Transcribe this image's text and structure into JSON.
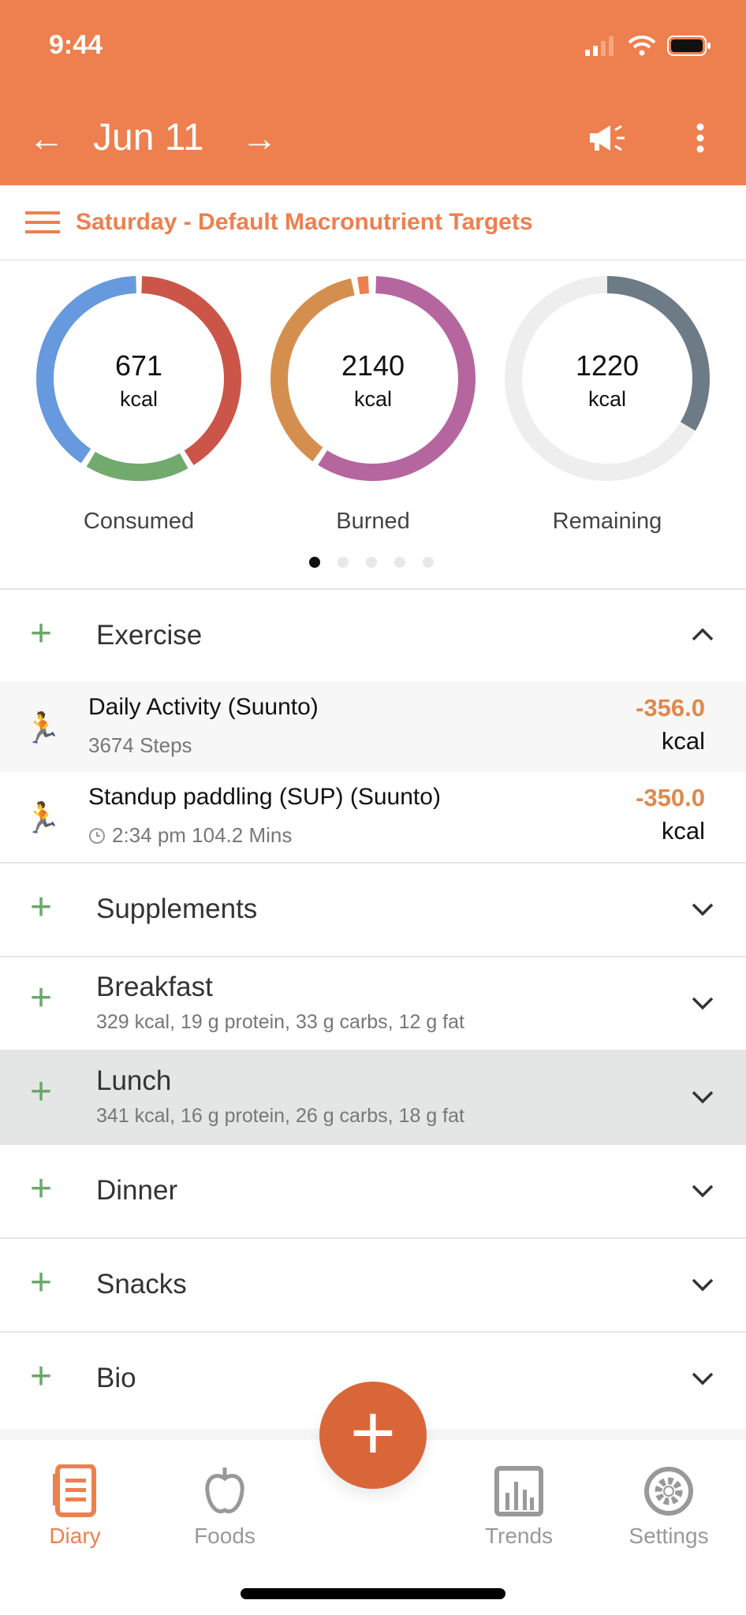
{
  "status": {
    "time": "9:44"
  },
  "header": {
    "date": "Jun 11",
    "back_icon": "arrow-left-icon",
    "forward_icon": "arrow-right-icon"
  },
  "subheader": {
    "title": "Saturday - Default Macronutrient Targets"
  },
  "rings": [
    {
      "value": "671",
      "unit": "kcal",
      "label": "Consumed",
      "segments": [
        {
          "from": 0.005,
          "to": 0.41,
          "color": "#cc5549"
        },
        {
          "from": 0.42,
          "to": 0.585,
          "color": "#72aa6e"
        },
        {
          "from": 0.595,
          "to": 0.995,
          "color": "#6699dd"
        }
      ]
    },
    {
      "value": "2140",
      "unit": "kcal",
      "label": "Burned",
      "segments": [
        {
          "from": 0.005,
          "to": 0.59,
          "color": "#b5669f"
        },
        {
          "from": 0.6,
          "to": 0.965,
          "color": "#d48f4f"
        },
        {
          "from": 0.975,
          "to": 0.992,
          "color": "#ee7f4e"
        }
      ]
    },
    {
      "value": "1220",
      "unit": "kcal",
      "label": "Remaining",
      "segments": [
        {
          "from": 0,
          "to": 1,
          "color": "#eeeeee"
        },
        {
          "from": 0,
          "to": 0.335,
          "color": "#6d7b87"
        }
      ]
    }
  ],
  "pager": {
    "count": 5,
    "active": 0
  },
  "exercise": {
    "title": "Exercise",
    "items": [
      {
        "name": "Daily Activity (Suunto)",
        "detail": "3674 Steps",
        "kcal": "-356.0",
        "unit": "kcal"
      },
      {
        "name": "Standup paddling (SUP) (Suunto)",
        "detail": "2:34 pm 104.2 Mins",
        "kcal": "-350.0",
        "unit": "kcal"
      }
    ]
  },
  "sections": [
    {
      "name": "Supplements",
      "macros": ""
    },
    {
      "name": "Breakfast",
      "macros": "329 kcal, 19 g protein, 33 g carbs, 12 g fat"
    },
    {
      "name": "Lunch",
      "macros": "341 kcal, 16 g protein, 26 g carbs, 18 g fat"
    },
    {
      "name": "Dinner",
      "macros": ""
    },
    {
      "name": "Snacks",
      "macros": ""
    },
    {
      "name": "Bio",
      "macros": ""
    }
  ],
  "tabs": [
    {
      "label": "Diary",
      "active": true
    },
    {
      "label": "Foods"
    },
    {
      "label": "Trends"
    },
    {
      "label": "Settings"
    }
  ],
  "glyphs": {
    "plus": "+",
    "chev_up": "︿",
    "chev_down": "﹀",
    "left": "←",
    "right": "→",
    "run": "🏃"
  },
  "colors": {
    "brand": "#ee7f4e",
    "fab": "#d96639",
    "add": "#6aa86a"
  }
}
